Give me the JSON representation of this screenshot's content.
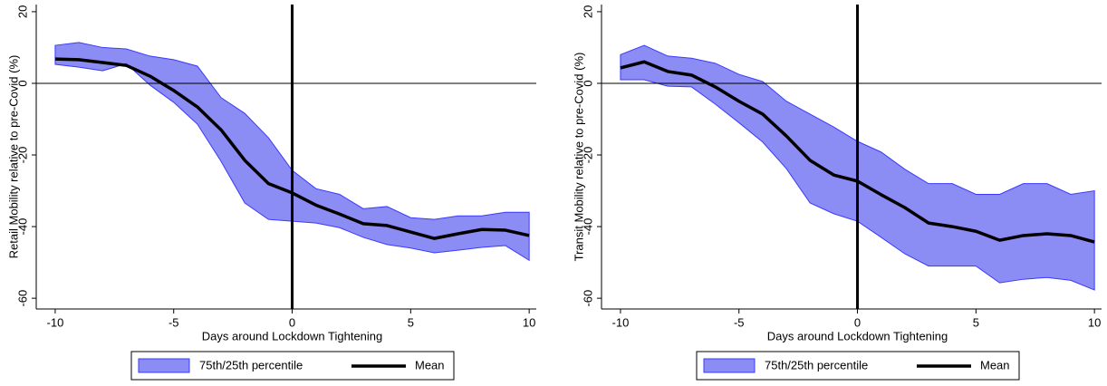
{
  "chart_data": [
    {
      "type": "band-line",
      "xlabel": "Days around Lockdown Tightening",
      "ylabel": "Retail Mobility relative to pre-Covid (%)",
      "x": [
        -10,
        -9,
        -8,
        -7,
        -6,
        -5,
        -4,
        -3,
        -2,
        -1,
        0,
        1,
        2,
        3,
        4,
        5,
        6,
        7,
        8,
        9,
        10
      ],
      "series": [
        {
          "name": "75th/25th percentile",
          "color": "#8c8cf5",
          "edge": "#3a3aff",
          "upper": [
            10.6,
            11.4,
            10,
            9.6,
            7.6,
            6.6,
            4.8,
            -4,
            -8.4,
            -15.2,
            -24.3,
            -29.4,
            -31,
            -35,
            -34.4,
            -37.5,
            -38,
            -37,
            -37,
            -36,
            -36
          ],
          "lower": [
            5.3,
            4.5,
            3.5,
            5.5,
            -0.5,
            -5.3,
            -11.4,
            -21.8,
            -33.4,
            -38,
            -38.5,
            -39,
            -40.3,
            -43,
            -45,
            -46,
            -47.3,
            -46.6,
            -45.8,
            -45.3,
            -49.4
          ]
        },
        {
          "name": "Mean",
          "color": "#000000",
          "values": [
            6.8,
            6.6,
            5.8,
            5,
            2,
            -2,
            -6.6,
            -13,
            -21.5,
            -28,
            -30.6,
            -34,
            -36.5,
            -39.2,
            -39.7,
            -41.5,
            -43.3,
            -42,
            -40.8,
            -41,
            -42.5
          ]
        }
      ],
      "xlim": [
        -10.8,
        10.3
      ],
      "xticks": [
        -10,
        -5,
        0,
        5,
        10
      ],
      "ylim": [
        -63,
        22
      ],
      "yticks": [
        -60,
        -40,
        -20,
        0,
        20
      ],
      "vline": 0,
      "hline": 0
    },
    {
      "type": "band-line",
      "xlabel": "Days around Lockdown Tightening",
      "ylabel": "Transit Mobility relative to pre-Covid (%)",
      "x": [
        -10,
        -9,
        -8,
        -7,
        -6,
        -5,
        -4,
        -3,
        -2,
        -1,
        0,
        1,
        2,
        3,
        4,
        5,
        6,
        7,
        8,
        9,
        10
      ],
      "series": [
        {
          "name": "75th/25th percentile",
          "color": "#8c8cf5",
          "edge": "#3a3aff",
          "upper": [
            8,
            10.6,
            7.6,
            7,
            5.6,
            2.5,
            0.5,
            -5,
            -8.6,
            -12.2,
            -16.2,
            -19.2,
            -24,
            -28,
            -28,
            -31,
            -31,
            -28,
            -28,
            -31,
            -30
          ],
          "lower": [
            1,
            1,
            -0.8,
            -1,
            -5.8,
            -11,
            -16.4,
            -23.8,
            -33.4,
            -36.4,
            -38.5,
            -43,
            -47.6,
            -51,
            -51,
            -51,
            -55.7,
            -54.7,
            -54.2,
            -55,
            -57.7
          ]
        },
        {
          "name": "Mean",
          "color": "#000000",
          "values": [
            4.3,
            6,
            3.3,
            2.3,
            -1,
            -5,
            -8.6,
            -14.7,
            -21.5,
            -25.6,
            -27.3,
            -31.1,
            -34.7,
            -39,
            -40,
            -41.3,
            -43.8,
            -42.5,
            -42,
            -42.5,
            -44.3
          ]
        }
      ],
      "xlim": [
        -10.8,
        10.3
      ],
      "xticks": [
        -10,
        -5,
        0,
        5,
        10
      ],
      "ylim": [
        -63,
        22
      ],
      "yticks": [
        -60,
        -40,
        -20,
        0,
        20
      ],
      "vline": 0,
      "hline": 0
    }
  ]
}
